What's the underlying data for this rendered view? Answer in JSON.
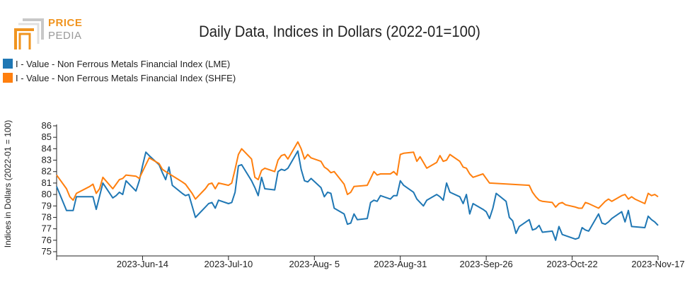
{
  "logo": {
    "line1": "PRICE",
    "line2": "PEDIA"
  },
  "chart_data": {
    "type": "line",
    "title": "Daily Data, Indices in Dollars (2022-01=100)",
    "ylabel": "Indices in Dollars (2022-01 = 100)",
    "xlabel": "",
    "ylim": [
      75,
      86
    ],
    "yticks": [
      75,
      76,
      77,
      78,
      79,
      80,
      81,
      82,
      83,
      84,
      85,
      86
    ],
    "xlim": [
      "2023-05-19",
      "2023-11-17"
    ],
    "xticks": [
      "2023-Jun-14",
      "2023-Jul-10",
      "2023-Aug- 5",
      "2023-Aug-31",
      "2023-Sep-26",
      "2023-Oct-22",
      "2023-Nov-17"
    ],
    "xtick_dates": [
      "2023-06-14",
      "2023-07-10",
      "2023-08-05",
      "2023-08-31",
      "2023-09-26",
      "2023-10-22",
      "2023-11-17"
    ],
    "legend_position": "top-left",
    "series": [
      {
        "name": "I - Value - Non Ferrous Metals Financial Index (LME)",
        "color": "#1f77b4",
        "points": [
          [
            "2023-05-19",
            80.7
          ],
          [
            "2023-05-22",
            78.6
          ],
          [
            "2023-05-24",
            78.6
          ],
          [
            "2023-05-25",
            79.8
          ],
          [
            "2023-05-30",
            79.8
          ],
          [
            "2023-05-31",
            78.7
          ],
          [
            "2023-06-02",
            81.0
          ],
          [
            "2023-06-05",
            79.7
          ],
          [
            "2023-06-06",
            79.9
          ],
          [
            "2023-06-07",
            80.2
          ],
          [
            "2023-06-08",
            80.0
          ],
          [
            "2023-06-09",
            81.2
          ],
          [
            "2023-06-12",
            80.3
          ],
          [
            "2023-06-13",
            81.2
          ],
          [
            "2023-06-14",
            82.5
          ],
          [
            "2023-06-15",
            83.7
          ],
          [
            "2023-06-16",
            83.4
          ],
          [
            "2023-06-19",
            82.6
          ],
          [
            "2023-06-20",
            81.9
          ],
          [
            "2023-06-21",
            81.3
          ],
          [
            "2023-06-22",
            82.4
          ],
          [
            "2023-06-23",
            80.8
          ],
          [
            "2023-06-26",
            80.1
          ],
          [
            "2023-06-27",
            79.9
          ],
          [
            "2023-06-28",
            80.0
          ],
          [
            "2023-06-30",
            78.0
          ],
          [
            "2023-07-03",
            78.9
          ],
          [
            "2023-07-04",
            79.2
          ],
          [
            "2023-07-05",
            79.3
          ],
          [
            "2023-07-06",
            78.8
          ],
          [
            "2023-07-07",
            79.5
          ],
          [
            "2023-07-10",
            79.2
          ],
          [
            "2023-07-11",
            79.3
          ],
          [
            "2023-07-12",
            80.2
          ],
          [
            "2023-07-13",
            82.5
          ],
          [
            "2023-07-14",
            82.6
          ],
          [
            "2023-07-17",
            81.2
          ],
          [
            "2023-07-18",
            80.6
          ],
          [
            "2023-07-19",
            79.9
          ],
          [
            "2023-07-20",
            81.5
          ],
          [
            "2023-07-21",
            80.5
          ],
          [
            "2023-07-24",
            80.4
          ],
          [
            "2023-07-25",
            82.0
          ],
          [
            "2023-07-26",
            82.2
          ],
          [
            "2023-07-27",
            82.1
          ],
          [
            "2023-07-28",
            82.3
          ],
          [
            "2023-07-31",
            83.8
          ],
          [
            "2023-08-01",
            82.2
          ],
          [
            "2023-08-02",
            81.2
          ],
          [
            "2023-08-03",
            81.1
          ],
          [
            "2023-08-04",
            81.4
          ],
          [
            "2023-08-07",
            80.6
          ],
          [
            "2023-08-08",
            79.8
          ],
          [
            "2023-08-09",
            80.2
          ],
          [
            "2023-08-10",
            80.1
          ],
          [
            "2023-08-11",
            78.8
          ],
          [
            "2023-08-14",
            78.3
          ],
          [
            "2023-08-15",
            77.4
          ],
          [
            "2023-08-16",
            77.5
          ],
          [
            "2023-08-17",
            78.3
          ],
          [
            "2023-08-18",
            77.8
          ],
          [
            "2023-08-21",
            77.9
          ],
          [
            "2023-08-22",
            79.3
          ],
          [
            "2023-08-23",
            79.5
          ],
          [
            "2023-08-24",
            79.4
          ],
          [
            "2023-08-25",
            79.9
          ],
          [
            "2023-08-28",
            79.6
          ],
          [
            "2023-08-29",
            79.9
          ],
          [
            "2023-08-30",
            79.9
          ],
          [
            "2023-08-31",
            81.2
          ],
          [
            "2023-09-01",
            80.8
          ],
          [
            "2023-09-04",
            80.2
          ],
          [
            "2023-09-05",
            79.6
          ],
          [
            "2023-09-06",
            79.3
          ],
          [
            "2023-09-07",
            79.0
          ],
          [
            "2023-09-08",
            79.5
          ],
          [
            "2023-09-11",
            80.0
          ],
          [
            "2023-09-12",
            79.8
          ],
          [
            "2023-09-13",
            79.5
          ],
          [
            "2023-09-14",
            81.0
          ],
          [
            "2023-09-15",
            80.2
          ],
          [
            "2023-09-18",
            79.8
          ],
          [
            "2023-09-19",
            79.2
          ],
          [
            "2023-09-20",
            80.0
          ],
          [
            "2023-09-21",
            78.3
          ],
          [
            "2023-09-22",
            79.2
          ],
          [
            "2023-09-25",
            78.7
          ],
          [
            "2023-09-26",
            78.5
          ],
          [
            "2023-09-27",
            77.9
          ],
          [
            "2023-09-28",
            78.8
          ],
          [
            "2023-09-29",
            80.1
          ],
          [
            "2023-10-02",
            79.4
          ],
          [
            "2023-10-03",
            78.0
          ],
          [
            "2023-10-04",
            77.7
          ],
          [
            "2023-10-05",
            76.6
          ],
          [
            "2023-10-06",
            77.2
          ],
          [
            "2023-10-09",
            77.8
          ],
          [
            "2023-10-10",
            76.9
          ],
          [
            "2023-10-11",
            77.0
          ],
          [
            "2023-10-12",
            77.3
          ],
          [
            "2023-10-13",
            76.7
          ],
          [
            "2023-10-16",
            76.8
          ],
          [
            "2023-10-17",
            76.0
          ],
          [
            "2023-10-18",
            77.2
          ],
          [
            "2023-10-19",
            76.5
          ],
          [
            "2023-10-20",
            76.4
          ],
          [
            "2023-10-23",
            76.1
          ],
          [
            "2023-10-24",
            76.2
          ],
          [
            "2023-10-25",
            77.1
          ],
          [
            "2023-10-26",
            76.9
          ],
          [
            "2023-10-27",
            76.8
          ],
          [
            "2023-10-30",
            78.3
          ],
          [
            "2023-10-31",
            77.5
          ],
          [
            "2023-11-01",
            77.4
          ],
          [
            "2023-11-02",
            77.6
          ],
          [
            "2023-11-03",
            77.9
          ],
          [
            "2023-11-06",
            78.5
          ],
          [
            "2023-11-07",
            77.6
          ],
          [
            "2023-11-08",
            78.6
          ],
          [
            "2023-11-09",
            77.2
          ],
          [
            "2023-11-13",
            77.1
          ],
          [
            "2023-11-14",
            78.1
          ],
          [
            "2023-11-15",
            77.8
          ],
          [
            "2023-11-16",
            77.6
          ],
          [
            "2023-11-17",
            77.3
          ]
        ]
      },
      {
        "name": "I - Value - Non Ferrous Metals Financial Index (SHFE)",
        "color": "#ff7f0e",
        "points": [
          [
            "2023-05-19",
            81.7
          ],
          [
            "2023-05-22",
            80.5
          ],
          [
            "2023-05-23",
            79.8
          ],
          [
            "2023-05-24",
            79.5
          ],
          [
            "2023-05-25",
            80.1
          ],
          [
            "2023-05-29",
            80.7
          ],
          [
            "2023-05-30",
            80.9
          ],
          [
            "2023-05-31",
            80.1
          ],
          [
            "2023-06-01",
            80.5
          ],
          [
            "2023-06-02",
            81.5
          ],
          [
            "2023-06-05",
            80.5
          ],
          [
            "2023-06-06",
            80.9
          ],
          [
            "2023-06-07",
            81.3
          ],
          [
            "2023-06-08",
            81.4
          ],
          [
            "2023-06-09",
            81.7
          ],
          [
            "2023-06-12",
            81.6
          ],
          [
            "2023-06-13",
            81.4
          ],
          [
            "2023-06-14",
            82.0
          ],
          [
            "2023-06-15",
            82.6
          ],
          [
            "2023-06-16",
            83.2
          ],
          [
            "2023-06-19",
            82.7
          ],
          [
            "2023-06-20",
            82.2
          ],
          [
            "2023-06-21",
            82.0
          ],
          [
            "2023-06-26",
            81.1
          ],
          [
            "2023-06-27",
            80.9
          ],
          [
            "2023-06-28",
            80.5
          ],
          [
            "2023-06-29",
            80.1
          ],
          [
            "2023-06-30",
            79.6
          ],
          [
            "2023-07-03",
            80.5
          ],
          [
            "2023-07-04",
            80.9
          ],
          [
            "2023-07-05",
            81.0
          ],
          [
            "2023-07-06",
            80.5
          ],
          [
            "2023-07-07",
            81.0
          ],
          [
            "2023-07-10",
            80.8
          ],
          [
            "2023-07-11",
            81.0
          ],
          [
            "2023-07-12",
            82.2
          ],
          [
            "2023-07-13",
            83.5
          ],
          [
            "2023-07-14",
            84.0
          ],
          [
            "2023-07-17",
            83.1
          ],
          [
            "2023-07-18",
            81.5
          ],
          [
            "2023-07-19",
            81.3
          ],
          [
            "2023-07-20",
            82.1
          ],
          [
            "2023-07-21",
            82.3
          ],
          [
            "2023-07-24",
            82.0
          ],
          [
            "2023-07-25",
            83.0
          ],
          [
            "2023-07-26",
            83.4
          ],
          [
            "2023-07-27",
            83.5
          ],
          [
            "2023-07-28",
            83.1
          ],
          [
            "2023-07-31",
            84.6
          ],
          [
            "2023-08-01",
            84.0
          ],
          [
            "2023-08-02",
            83.1
          ],
          [
            "2023-08-03",
            83.5
          ],
          [
            "2023-08-04",
            83.2
          ],
          [
            "2023-08-07",
            82.9
          ],
          [
            "2023-08-08",
            82.4
          ],
          [
            "2023-08-09",
            82.2
          ],
          [
            "2023-08-10",
            81.9
          ],
          [
            "2023-08-11",
            82.0
          ],
          [
            "2023-08-14",
            80.9
          ],
          [
            "2023-08-15",
            80.0
          ],
          [
            "2023-08-16",
            80.2
          ],
          [
            "2023-08-17",
            80.7
          ],
          [
            "2023-08-21",
            80.8
          ],
          [
            "2023-08-22",
            81.4
          ],
          [
            "2023-08-23",
            82.0
          ],
          [
            "2023-08-24",
            81.7
          ],
          [
            "2023-08-25",
            81.8
          ],
          [
            "2023-08-28",
            81.8
          ],
          [
            "2023-08-29",
            82.0
          ],
          [
            "2023-08-30",
            81.7
          ],
          [
            "2023-08-31",
            83.5
          ],
          [
            "2023-09-01",
            83.6
          ],
          [
            "2023-09-04",
            83.7
          ],
          [
            "2023-09-05",
            82.9
          ],
          [
            "2023-09-06",
            83.3
          ],
          [
            "2023-09-07",
            82.8
          ],
          [
            "2023-09-08",
            82.3
          ],
          [
            "2023-09-11",
            82.8
          ],
          [
            "2023-09-12",
            83.4
          ],
          [
            "2023-09-13",
            82.9
          ],
          [
            "2023-09-14",
            83.0
          ],
          [
            "2023-09-15",
            83.5
          ],
          [
            "2023-09-18",
            82.9
          ],
          [
            "2023-09-19",
            82.4
          ],
          [
            "2023-09-20",
            82.3
          ],
          [
            "2023-09-21",
            81.8
          ],
          [
            "2023-09-22",
            81.5
          ],
          [
            "2023-09-25",
            81.8
          ],
          [
            "2023-09-26",
            81.4
          ],
          [
            "2023-09-27",
            81.0
          ],
          [
            "2023-10-09",
            80.8
          ],
          [
            "2023-10-10",
            80.2
          ],
          [
            "2023-10-11",
            79.8
          ],
          [
            "2023-10-12",
            79.5
          ],
          [
            "2023-10-13",
            79.4
          ],
          [
            "2023-10-16",
            79.3
          ],
          [
            "2023-10-17",
            78.9
          ],
          [
            "2023-10-18",
            79.2
          ],
          [
            "2023-10-19",
            79.3
          ],
          [
            "2023-10-20",
            79.1
          ],
          [
            "2023-10-23",
            78.9
          ],
          [
            "2023-10-24",
            78.8
          ],
          [
            "2023-10-25",
            78.8
          ],
          [
            "2023-10-26",
            79.3
          ],
          [
            "2023-10-27",
            79.2
          ],
          [
            "2023-10-30",
            78.8
          ],
          [
            "2023-10-31",
            79.1
          ],
          [
            "2023-11-01",
            79.4
          ],
          [
            "2023-11-02",
            79.6
          ],
          [
            "2023-11-03",
            79.4
          ],
          [
            "2023-11-06",
            79.9
          ],
          [
            "2023-11-07",
            80.0
          ],
          [
            "2023-11-08",
            79.6
          ],
          [
            "2023-11-09",
            79.8
          ],
          [
            "2023-11-10",
            79.6
          ],
          [
            "2023-11-13",
            79.2
          ],
          [
            "2023-11-14",
            80.1
          ],
          [
            "2023-11-15",
            79.9
          ],
          [
            "2023-11-16",
            80.0
          ],
          [
            "2023-11-17",
            79.8
          ]
        ]
      }
    ]
  }
}
